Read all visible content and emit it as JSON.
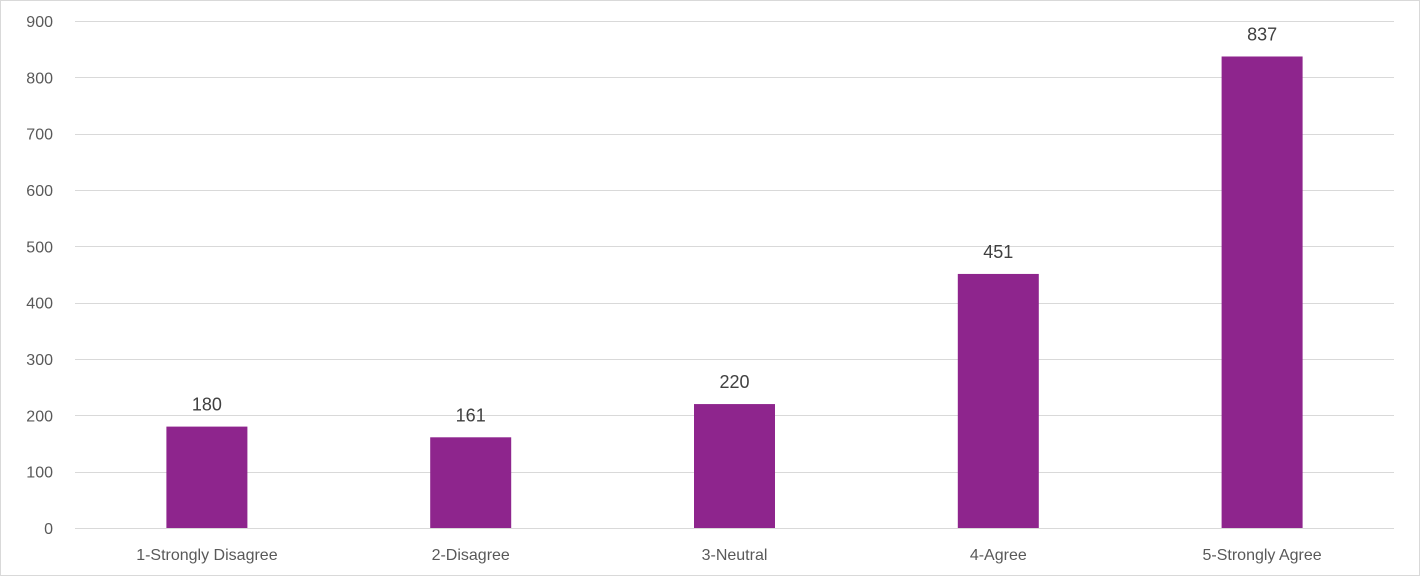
{
  "chart_data": {
    "type": "bar",
    "title": "",
    "xlabel": "",
    "ylabel": "",
    "categories": [
      "1-Strongly Disagree",
      "2-Disagree",
      "3-Neutral",
      "4-Agree",
      "5-Strongly Agree"
    ],
    "values": [
      180,
      161,
      220,
      451,
      837
    ],
    "data_labels": [
      "180",
      "161",
      "220",
      "451",
      "837"
    ],
    "ylim": [
      0,
      900
    ],
    "y_ticks": [
      0,
      100,
      200,
      300,
      400,
      500,
      600,
      700,
      800,
      900
    ],
    "grid": true,
    "legend": "none",
    "colors": {
      "bar": "#8E258D",
      "grid": "#d9d9d9",
      "tick_text": "#595959",
      "label_text": "#404040"
    }
  }
}
